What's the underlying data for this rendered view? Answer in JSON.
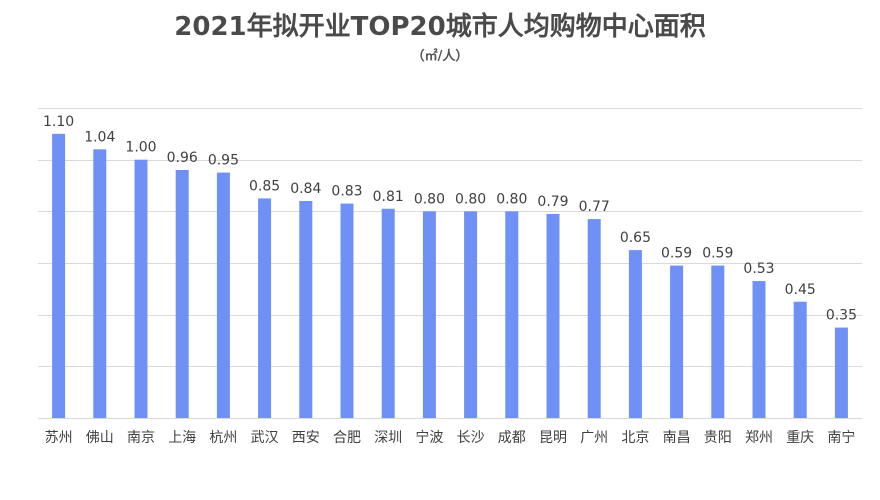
{
  "chart_data": {
    "type": "bar",
    "title": "2021年拟开业TOP20城市人均购物中心面积",
    "subtitle": "（㎡/人）",
    "xlabel": "",
    "ylabel": "",
    "ylim": [
      0,
      1.2
    ],
    "grid": true,
    "legend": "none",
    "bar_color": "#6f90f4",
    "categories": [
      "苏州",
      "佛山",
      "南京",
      "上海",
      "杭州",
      "武汉",
      "西安",
      "合肥",
      "深圳",
      "宁波",
      "长沙",
      "成都",
      "昆明",
      "广州",
      "北京",
      "南昌",
      "贵阳",
      "郑州",
      "重庆",
      "南宁"
    ],
    "values": [
      1.1,
      1.04,
      1.0,
      0.96,
      0.95,
      0.85,
      0.84,
      0.83,
      0.81,
      0.8,
      0.8,
      0.8,
      0.79,
      0.77,
      0.65,
      0.59,
      0.59,
      0.53,
      0.45,
      0.35
    ],
    "value_labels": [
      "1.10",
      "1.04",
      "1.00",
      "0.96",
      "0.95",
      "0.85",
      "0.84",
      "0.83",
      "0.81",
      "0.80",
      "0.80",
      "0.80",
      "0.79",
      "0.77",
      "0.65",
      "0.59",
      "0.59",
      "0.53",
      "0.45",
      "0.35"
    ]
  }
}
